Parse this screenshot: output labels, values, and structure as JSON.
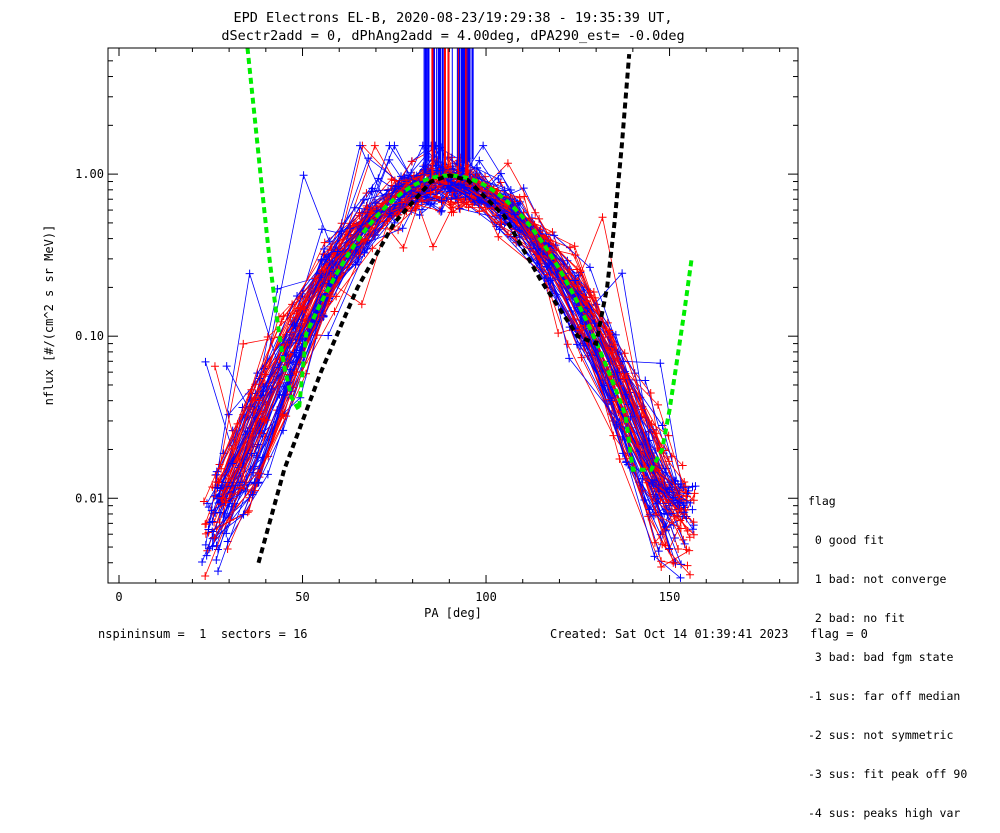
{
  "chart_data": {
    "type": "line",
    "title_line1": "EPD Electrons EL-B, 2020-08-23/19:29:38 - 19:35:39 UT,",
    "title_line2": "dSectr2add = 0, dPhAng2add = 4.00deg, dPA290_est=  -0.0deg",
    "xlabel": "PA [deg]",
    "ylabel": "nflux [#/(cm^2 s sr MeV)]",
    "xlim": [
      -3,
      185
    ],
    "ylim": [
      0.003,
      6.0
    ],
    "yscale": "log",
    "x_ticks": [
      0,
      50,
      100,
      150
    ],
    "x_tick_labels": [
      "0",
      "50",
      "100",
      "150"
    ],
    "y_ticks": [
      0.01,
      0.1,
      1.0
    ],
    "y_tick_labels": [
      "0.01",
      "0.10",
      "1.00"
    ],
    "series_colors": {
      "red": "#ff0000",
      "blue": "#0000ff",
      "green": "#00ee00",
      "black": "#000000"
    },
    "green_fit": {
      "left": {
        "x": [
          35,
          37,
          39,
          41,
          43,
          45,
          47,
          49
        ],
        "y": [
          6.0,
          2.2,
          0.8,
          0.3,
          0.13,
          0.065,
          0.042,
          0.035
        ]
      },
      "core_peak": 0.98,
      "right": {
        "x": [
          140,
          145,
          148,
          150,
          152,
          154,
          156
        ],
        "y": [
          0.015,
          0.015,
          0.02,
          0.035,
          0.07,
          0.14,
          0.3
        ]
      }
    },
    "black_fit": {
      "x": [
        38,
        45,
        55,
        65,
        75,
        85,
        90,
        95,
        105,
        115,
        125,
        130,
        133,
        135,
        137,
        139
      ],
      "y": [
        0.004,
        0.015,
        0.06,
        0.2,
        0.5,
        0.9,
        0.98,
        0.92,
        0.55,
        0.22,
        0.1,
        0.09,
        0.2,
        0.5,
        1.5,
        5.5
      ]
    }
  },
  "footer": {
    "left": "nspininsum =  1  sectors = 16",
    "right": "Created: Sat Oct 14 01:39:41 2023   flag = 0"
  },
  "flag_legend": {
    "title": "flag",
    "items": [
      " 0 good fit",
      " 1 bad: not converge",
      " 2 bad: no fit",
      " 3 bad: bad fgm state",
      "-1 sus: far off median",
      "-2 sus: not symmetric",
      "-3 sus: fit peak off 90",
      "-4 sus: peaks high var"
    ]
  }
}
